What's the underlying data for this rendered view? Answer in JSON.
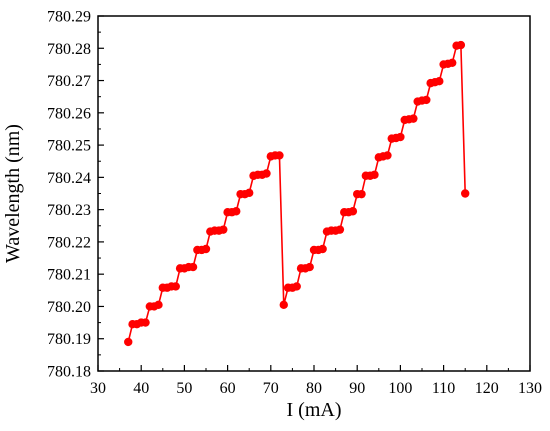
{
  "chart_data": {
    "type": "line",
    "title": "",
    "xlabel": "I (mA)",
    "ylabel": "Wavelength (nm)",
    "xlim": [
      30,
      130
    ],
    "ylim": [
      780.18,
      780.29
    ],
    "xticks": [
      30,
      40,
      50,
      60,
      70,
      80,
      90,
      100,
      110,
      120,
      130
    ],
    "yticks": [
      780.18,
      780.19,
      780.2,
      780.21,
      780.22,
      780.23,
      780.24,
      780.25,
      780.26,
      780.27,
      780.28,
      780.29
    ],
    "ytick_labels": [
      "780.18",
      "780.19",
      "780.20",
      "780.21",
      "780.22",
      "780.23",
      "780.24",
      "780.25",
      "780.26",
      "780.27",
      "780.28",
      "780.29"
    ],
    "grid": false,
    "series": [
      {
        "color": "#ff0000",
        "marker": "circle",
        "x": [
          37,
          38,
          39,
          40,
          41,
          42,
          43,
          44,
          45,
          46,
          47,
          48,
          49,
          50,
          51,
          52,
          53,
          54,
          55,
          56,
          57,
          58,
          59,
          60,
          61,
          62,
          63,
          64,
          65,
          66,
          67,
          68,
          69,
          70,
          71,
          72,
          73,
          74,
          75,
          76,
          77,
          78,
          79,
          80,
          81,
          82,
          83,
          84,
          85,
          86,
          87,
          88,
          89,
          90,
          91,
          92,
          93,
          94,
          95,
          96,
          97,
          98,
          99,
          100,
          101,
          102,
          103,
          104,
          105,
          106,
          107,
          108,
          109,
          110,
          111,
          112,
          113,
          114,
          115
        ],
        "y": [
          780.189,
          780.1945,
          780.1945,
          780.195,
          780.195,
          780.2,
          780.2,
          780.2005,
          780.2058,
          780.2058,
          780.2062,
          780.2062,
          780.2118,
          780.2118,
          780.2122,
          780.2122,
          780.2175,
          780.2175,
          780.2178,
          780.2232,
          780.2235,
          780.2235,
          780.2238,
          780.2292,
          780.2292,
          780.2295,
          780.2348,
          780.2348,
          780.2352,
          780.2405,
          780.2408,
          780.2408,
          780.2412,
          780.2465,
          780.2468,
          780.2468,
          780.2005,
          780.2058,
          780.2058,
          780.2062,
          780.2118,
          780.2118,
          780.2122,
          780.2175,
          780.2175,
          780.2178,
          780.2232,
          780.2235,
          780.2235,
          780.2238,
          780.2292,
          780.2292,
          780.2295,
          780.2348,
          780.2348,
          780.2405,
          780.2405,
          780.2408,
          780.2462,
          780.2465,
          780.2468,
          780.252,
          780.2522,
          780.2525,
          780.2578,
          780.258,
          780.2582,
          780.2635,
          780.2638,
          780.264,
          780.2692,
          780.2695,
          780.2698,
          780.275,
          780.2752,
          780.2755,
          780.2808,
          780.281,
          780.235
        ]
      }
    ]
  }
}
